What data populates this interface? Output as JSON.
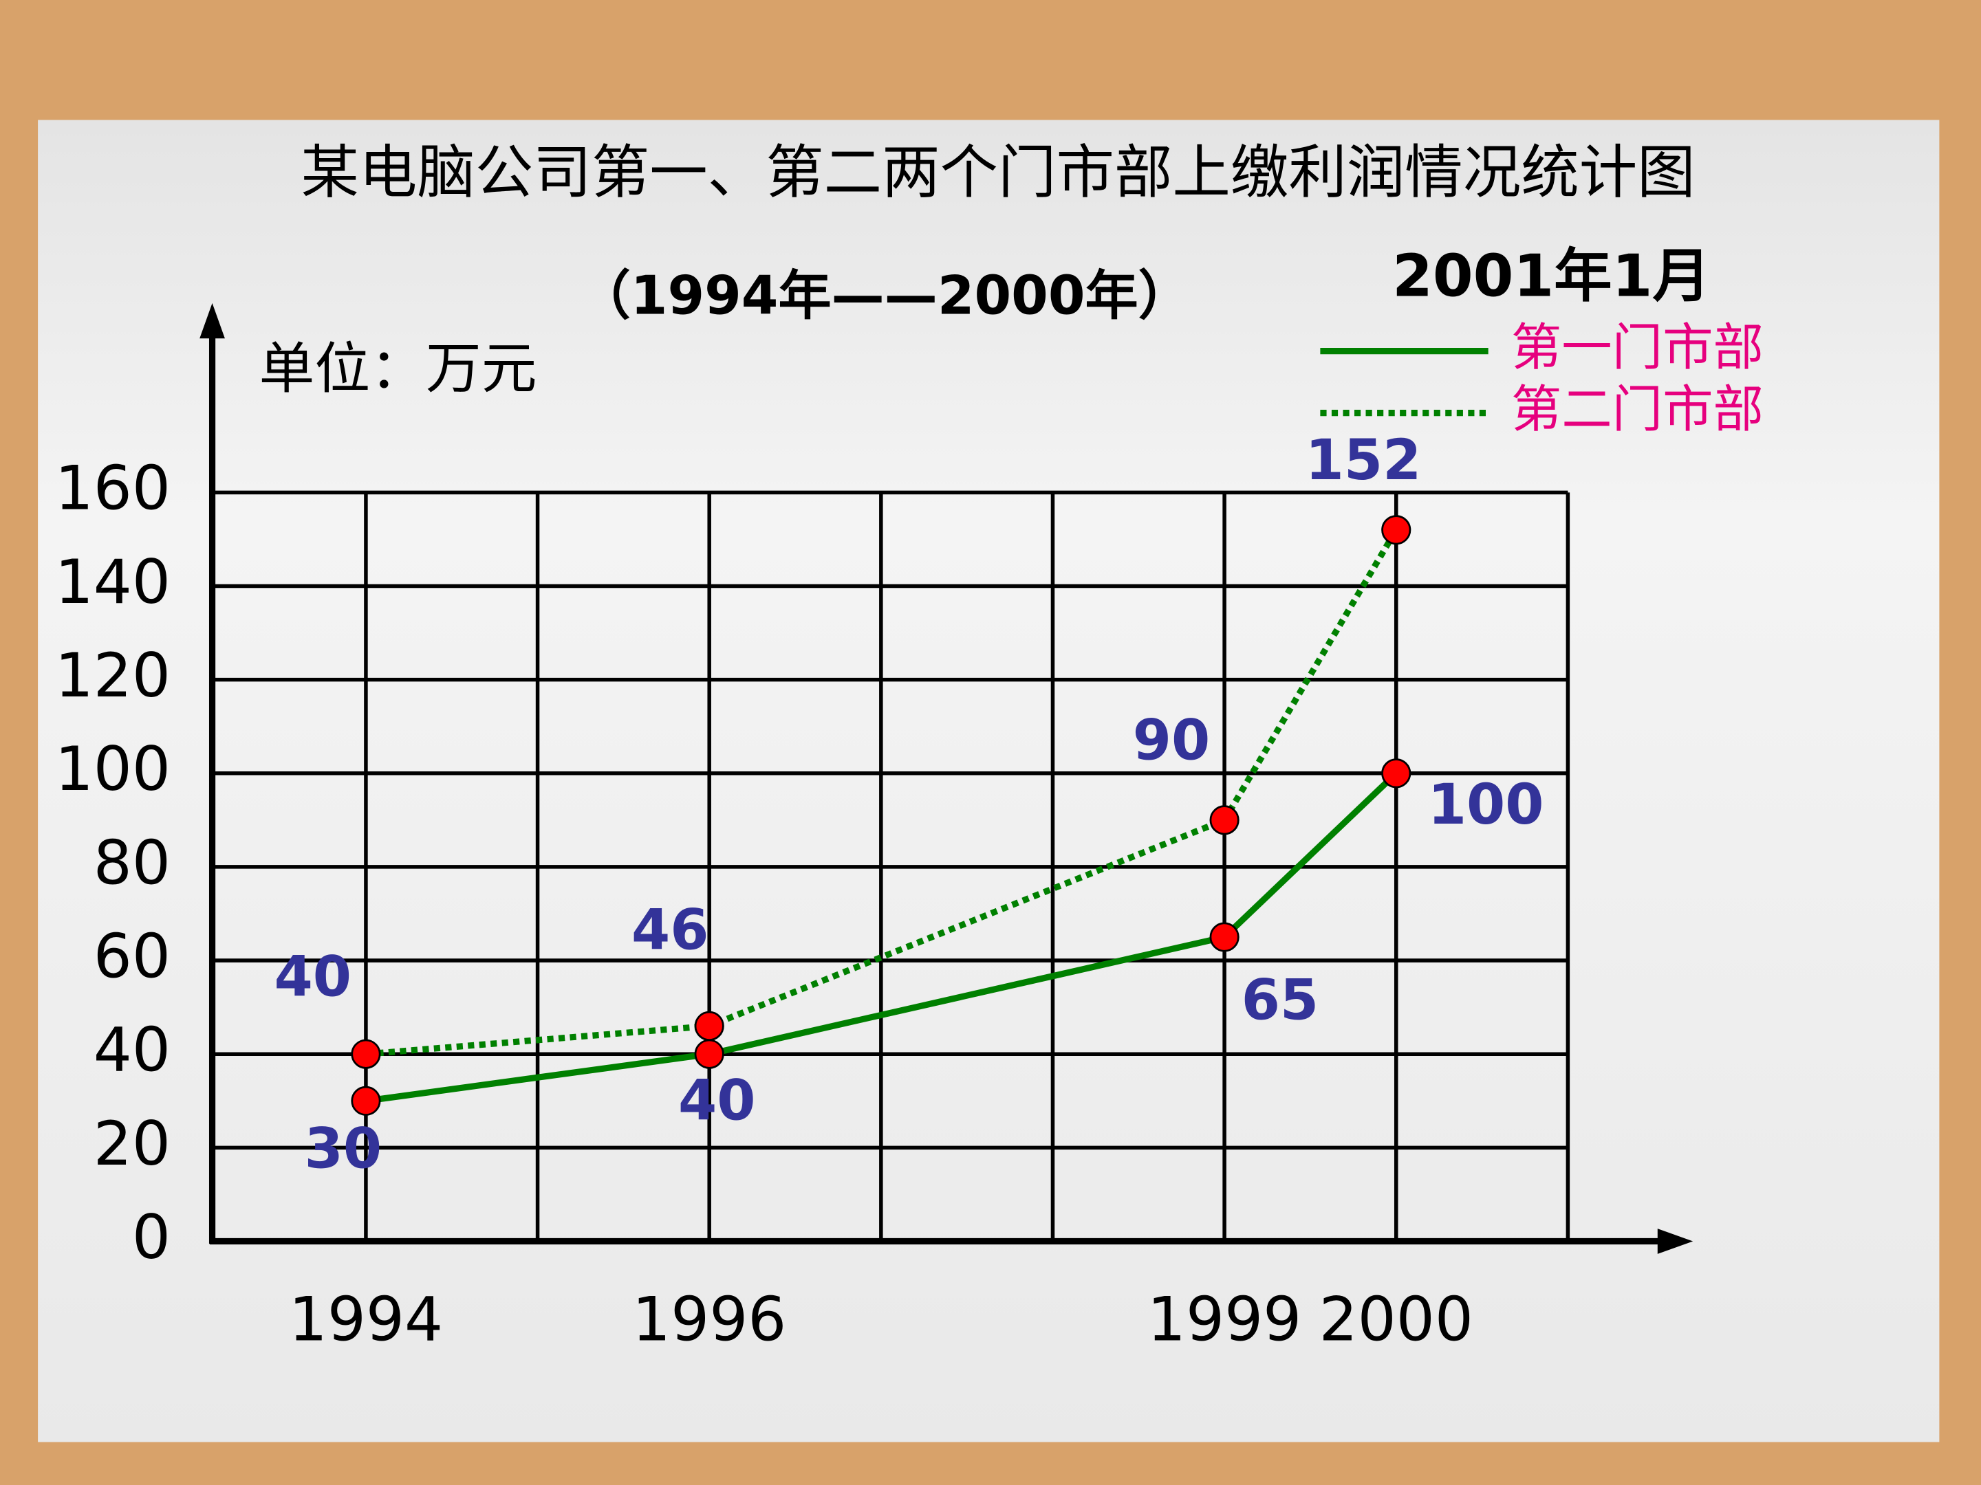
{
  "chart_data": {
    "type": "line",
    "title": "某电脑公司第一、第二两个门市部上缴利润情况统计图",
    "subtitle": "（1994年——2000年）",
    "unit_label": "单位：万元",
    "legend_title": "2001年1月",
    "x": [
      1994,
      1996,
      1999,
      2000
    ],
    "series": [
      {
        "name": "第一门市部",
        "color": "#008000",
        "style": "solid",
        "values": [
          30,
          40,
          65,
          100
        ]
      },
      {
        "name": "第二门市部",
        "color": "#008000",
        "style": "dotted",
        "values": [
          40,
          46,
          90,
          152
        ]
      }
    ],
    "marker_color": "#ff0000",
    "xlim": [
      1993.12,
      2001
    ],
    "xticks": [
      1994,
      {
        "value": 1995,
        "label": null
      },
      1996,
      {
        "value": 1997,
        "label": null
      },
      {
        "value": 1998,
        "label": null
      },
      1999,
      2000,
      {
        "value": 2001,
        "label": null
      }
    ],
    "ylim": [
      0,
      160
    ],
    "yticks": [
      0,
      20,
      40,
      60,
      80,
      100,
      120,
      140,
      160
    ],
    "grid": true
  }
}
